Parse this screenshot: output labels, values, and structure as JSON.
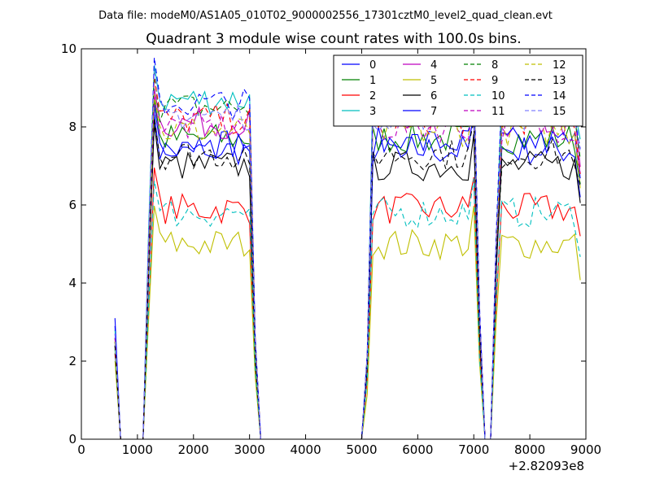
{
  "figure": {
    "suptitle": "Data file: modeM0/AS1A05_010T02_9000002556_17301cztM0_level2_quad_clean.evt"
  },
  "chart_data": {
    "type": "line",
    "title": "Quadrant 3 module wise count rates with 100.0s bins.",
    "xlabel": "",
    "ylabel": "",
    "x_offset_label": "+2.82093e8",
    "xlim": [
      0,
      9000
    ],
    "ylim": [
      0,
      10
    ],
    "xticks": [
      0,
      1000,
      2000,
      3000,
      4000,
      5000,
      6000,
      7000,
      8000,
      9000
    ],
    "yticks": [
      0,
      2,
      4,
      6,
      8,
      10
    ],
    "grid": false,
    "legend_position": "top-right",
    "legend_columns": 4,
    "segments": [
      {
        "start": 600,
        "end": 3200
      },
      {
        "start": 3200,
        "end": 5000
      },
      {
        "start": 5000,
        "end": 7200
      },
      {
        "start": 7200,
        "end": 9000
      }
    ],
    "series": [
      {
        "name": "0",
        "color": "#0000ff",
        "dash": "solid",
        "level": 7.4,
        "start": 3.1
      },
      {
        "name": "1",
        "color": "#008000",
        "dash": "solid",
        "level": 7.7,
        "start": 2.5
      },
      {
        "name": "2",
        "color": "#ff0000",
        "dash": "solid",
        "level": 5.9,
        "start": 2.2
      },
      {
        "name": "3",
        "color": "#00bfbf",
        "dash": "solid",
        "level": 8.7,
        "start": 2.8
      },
      {
        "name": "4",
        "color": "#bf00bf",
        "dash": "solid",
        "level": 8.1,
        "start": 2.6
      },
      {
        "name": "5",
        "color": "#bfbf00",
        "dash": "solid",
        "level": 5.0,
        "start": 2.0
      },
      {
        "name": "6",
        "color": "#000000",
        "dash": "solid",
        "level": 7.0,
        "start": 2.4
      },
      {
        "name": "7",
        "color": "#0000ff",
        "dash": "solid",
        "level": 7.6,
        "start": 2.7
      },
      {
        "name": "8",
        "color": "#008000",
        "dash": "dashed",
        "level": 8.5,
        "start": 2.6
      },
      {
        "name": "9",
        "color": "#ff0000",
        "dash": "dashed",
        "level": 8.2,
        "start": 2.5
      },
      {
        "name": "10",
        "color": "#00bfbf",
        "dash": "dashed",
        "level": 5.8,
        "start": 2.3
      },
      {
        "name": "11",
        "color": "#bf00bf",
        "dash": "dashed",
        "level": 8.0,
        "start": 2.6
      },
      {
        "name": "12",
        "color": "#bfbf00",
        "dash": "dashed",
        "level": 7.9,
        "start": 2.5
      },
      {
        "name": "13",
        "color": "#000000",
        "dash": "dashed",
        "level": 7.3,
        "start": 2.4
      },
      {
        "name": "14",
        "color": "#0000ff",
        "dash": "dashed",
        "level": 8.6,
        "start": 2.9
      },
      {
        "name": "15",
        "color": "#8080ff",
        "dash": "dashed",
        "level": 8.3,
        "start": 2.7
      }
    ]
  }
}
